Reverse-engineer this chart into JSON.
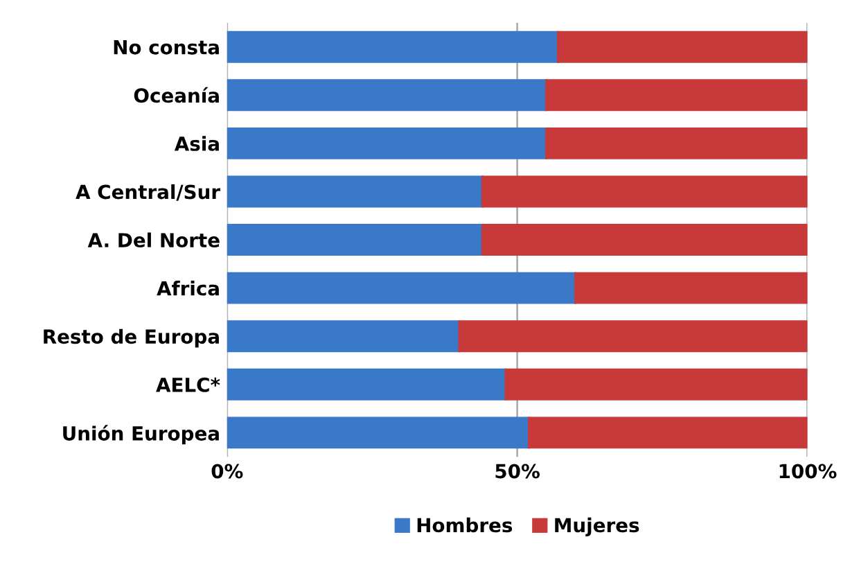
{
  "chart_data": {
    "type": "bar",
    "orientation": "horizontal",
    "stacked": true,
    "categories": [
      "No consta",
      "Oceanía",
      "Asia",
      "A Central/Sur",
      "A. Del Norte",
      "Africa",
      "Resto de Europa",
      "AELC*",
      "Unión Europea"
    ],
    "series": [
      {
        "name": "Hombres",
        "color": "#3a78c8",
        "values": [
          57,
          55,
          55,
          44,
          44,
          60,
          40,
          48,
          52
        ]
      },
      {
        "name": "Mujeres",
        "color": "#c83a3a",
        "values": [
          43,
          45,
          45,
          56,
          56,
          40,
          60,
          52,
          48
        ]
      }
    ],
    "xlim": [
      0,
      100
    ],
    "xticks": [
      {
        "value": 0,
        "label": "0%"
      },
      {
        "value": 50,
        "label": "50%"
      },
      {
        "value": 100,
        "label": "100%"
      }
    ],
    "grid": "x",
    "legend": "bottom"
  }
}
